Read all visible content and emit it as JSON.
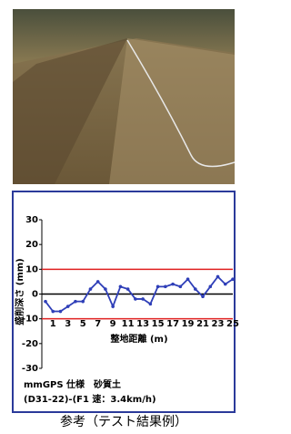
{
  "chart_data": {
    "type": "line",
    "x_label": "整地距離 (m)",
    "y_label": "盛削深さ (mm)",
    "x": [
      0,
      1,
      2,
      3,
      4,
      5,
      6,
      7,
      8,
      9,
      10,
      11,
      12,
      13,
      14,
      15,
      16,
      17,
      18,
      19,
      20,
      21,
      22,
      23,
      24,
      25
    ],
    "values": [
      -3,
      -7,
      -7,
      -5,
      -3,
      -3,
      2,
      5,
      2,
      -5,
      3,
      2,
      -2,
      -2,
      -4,
      3,
      3,
      4,
      3,
      6,
      2,
      -1,
      3,
      7,
      4,
      6
    ],
    "color": "#2f3fb8",
    "xlim": [
      0,
      25
    ],
    "xticks": [
      1,
      3,
      5,
      7,
      9,
      11,
      13,
      15,
      17,
      19,
      21,
      23,
      25
    ],
    "ylim": [
      -30,
      30
    ],
    "yticks": [
      30,
      20,
      10,
      0,
      -10,
      -20,
      -30
    ],
    "reference_lines": [
      {
        "value": 10,
        "color": "#e02020"
      },
      {
        "value": -10,
        "color": "#e02020"
      },
      {
        "value": 0,
        "color": "#000000"
      }
    ]
  },
  "notes": [
    "mmGPS 仕様　砂質土",
    "(D31-22)-(F1 速：3.4km/h)"
  ],
  "caption": "参考（テスト結果例）"
}
